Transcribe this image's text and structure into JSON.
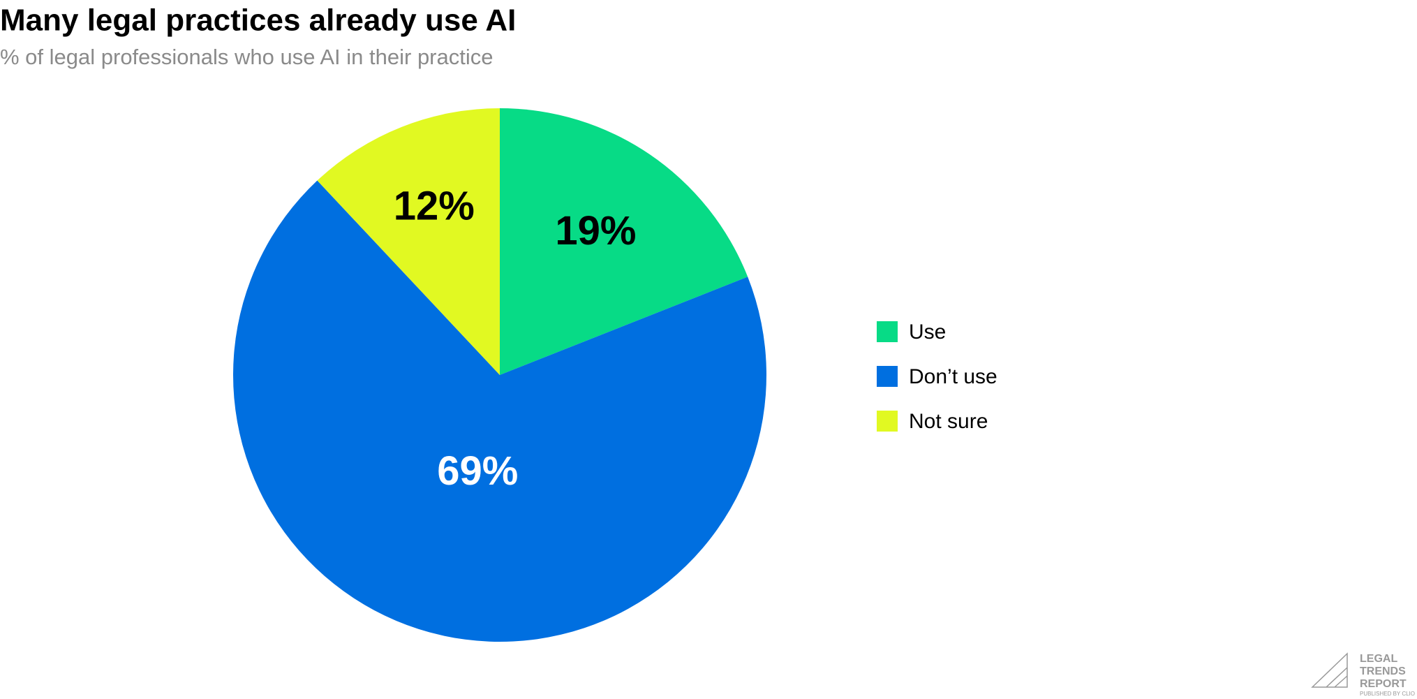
{
  "chart_data": {
    "type": "pie",
    "title": "Many legal practices already use AI",
    "subtitle": "% of legal professionals who use AI in their practice",
    "categories": [
      "Use",
      "Don’t use",
      "Not sure"
    ],
    "values": [
      19,
      69,
      12
    ],
    "value_labels": [
      "19%",
      "69%",
      "12%"
    ],
    "colors": [
      "#07db86",
      "#006fe0",
      "#e1f922"
    ],
    "legend": "right"
  },
  "logo": {
    "lines": [
      "LEGAL",
      "TRENDS",
      "REPORT"
    ],
    "tagline": "PUBLISHED BY CLIO"
  }
}
